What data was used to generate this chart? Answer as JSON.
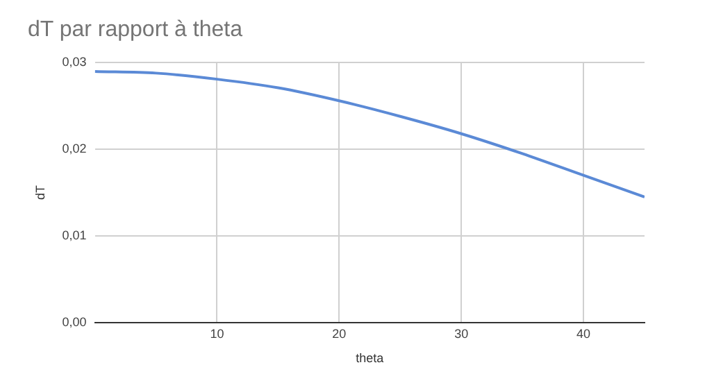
{
  "chart_data": {
    "type": "line",
    "title": "dT par rapport à theta",
    "xlabel": "theta",
    "ylabel": "dT",
    "x": [
      0,
      5,
      10,
      15,
      20,
      25,
      30,
      35,
      40,
      45
    ],
    "series": [
      {
        "color": "#5b8ad6",
        "values": [
          0.029,
          0.0288,
          0.0281,
          0.0271,
          0.0256,
          0.0238,
          0.0218,
          0.0195,
          0.017,
          0.0145
        ]
      }
    ],
    "xlim": [
      0,
      45
    ],
    "xticks": [
      10,
      20,
      30,
      40
    ],
    "ylim": [
      0,
      0.03
    ],
    "yticks": [
      {
        "value": 0,
        "label": "0,00"
      },
      {
        "value": 0.01,
        "label": "0,01"
      },
      {
        "value": 0.02,
        "label": "0,02"
      },
      {
        "value": 0.03,
        "label": "0,03"
      }
    ],
    "grid": true,
    "legend": false,
    "marker": "none",
    "line_style": "solid"
  }
}
